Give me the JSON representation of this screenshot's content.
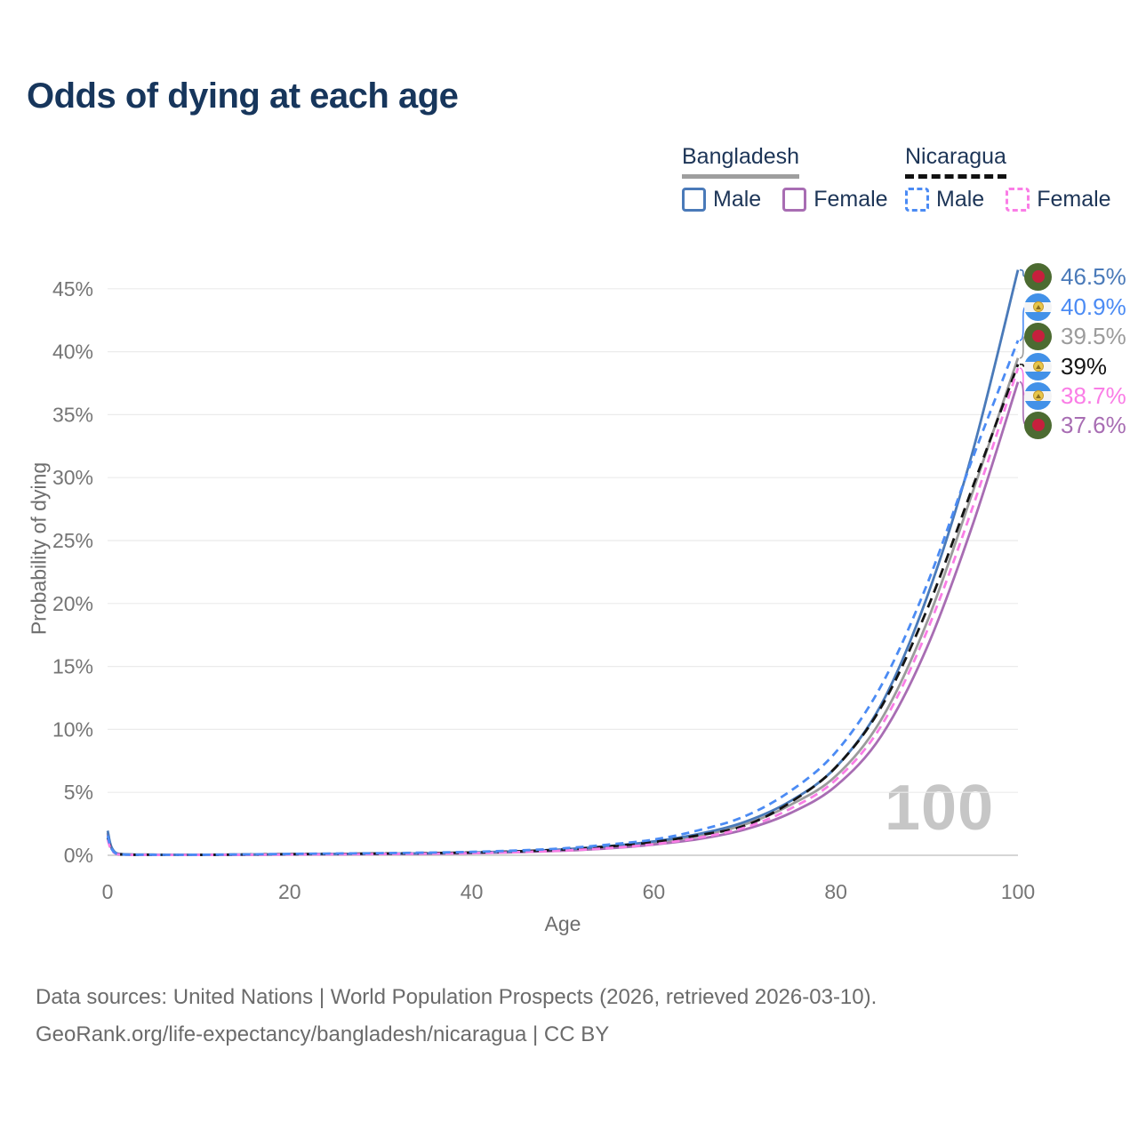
{
  "title": "Odds of dying at each age",
  "legend": {
    "groups": [
      {
        "id": "bd",
        "label": "Bangladesh",
        "items": [
          {
            "series": "bd_male",
            "label": "Male"
          },
          {
            "series": "bd_female",
            "label": "Female"
          }
        ]
      },
      {
        "id": "ni",
        "label": "Nicaragua",
        "items": [
          {
            "series": "ni_male",
            "label": "Male"
          },
          {
            "series": "ni_female",
            "label": "Female"
          }
        ]
      }
    ]
  },
  "footer": {
    "line1": "Data sources: United Nations | World Population Prospects (2026, retrieved 2026-03-10).",
    "line2": "GeoRank.org/life-expectancy/bangladesh/nicaragua | CC BY"
  },
  "colors": {
    "title": "#17365c",
    "legend_text": "#1d3557",
    "axis_text": "#757575",
    "axis_title": "#6e6e6e",
    "grid": "#ebebeb",
    "axis_line": "#c9c9c9",
    "watermark": "#c6c6c6",
    "footer": "#6b6b6b",
    "bd_flag_green": "#4c6b31",
    "bd_flag_red": "#c7203d",
    "ni_flag_blue": "#4291e8",
    "ni_flag_white": "#f4f4f4",
    "ni_flag_gold": "#e7c64a"
  },
  "chart_data": {
    "type": "line",
    "title": "Odds of dying at each age",
    "xlabel": "Age",
    "ylabel": "Probability of dying",
    "xlim": [
      0,
      100
    ],
    "ylim": [
      0,
      45
    ],
    "x_ticks": [
      0,
      20,
      40,
      60,
      80,
      100
    ],
    "y_ticks": [
      0,
      5,
      10,
      15,
      20,
      25,
      30,
      35,
      40,
      45
    ],
    "y_tick_suffix": "%",
    "grid": "horizontal-only",
    "legend_position": "top-right",
    "age_counter": "100",
    "ages": [
      0,
      1,
      5,
      10,
      15,
      20,
      25,
      30,
      35,
      40,
      45,
      50,
      55,
      60,
      65,
      70,
      75,
      80,
      85,
      90,
      95,
      100
    ],
    "series": [
      {
        "id": "bd_male",
        "name": "Bangladesh Male",
        "country": "Bangladesh",
        "sex": "Male",
        "color": "#4a7ab9",
        "dash": null,
        "flag": "bd",
        "end_label": "46.5%",
        "values": [
          1.95,
          0.15,
          0.05,
          0.04,
          0.06,
          0.09,
          0.11,
          0.13,
          0.16,
          0.22,
          0.32,
          0.47,
          0.72,
          1.1,
          1.7,
          2.65,
          4.3,
          7.0,
          12.0,
          20.5,
          32.0,
          46.5
        ]
      },
      {
        "id": "bd_female",
        "name": "Bangladesh Female",
        "country": "Bangladesh",
        "sex": "Female",
        "color": "#a86db3",
        "dash": null,
        "flag": "bd",
        "end_label": "37.6%",
        "values": [
          1.7,
          0.13,
          0.04,
          0.03,
          0.04,
          0.06,
          0.08,
          0.1,
          0.12,
          0.16,
          0.24,
          0.36,
          0.55,
          0.85,
          1.3,
          2.05,
          3.35,
          5.5,
          9.5,
          16.5,
          26.2,
          37.6
        ]
      },
      {
        "id": "bd_all",
        "name": "Bangladesh (both sexes)",
        "country": "Bangladesh",
        "sex": "All",
        "color": "#9b9b9b",
        "dash": null,
        "flag": "bd",
        "end_label": "39.5%",
        "values": [
          1.8,
          0.14,
          0.05,
          0.04,
          0.05,
          0.08,
          0.1,
          0.12,
          0.14,
          0.19,
          0.28,
          0.42,
          0.64,
          0.98,
          1.55,
          2.45,
          4.0,
          6.3,
          10.8,
          18.5,
          28.8,
          39.5
        ]
      },
      {
        "id": "ni_all",
        "name": "Nicaragua (both sexes)",
        "country": "Nicaragua",
        "sex": "All",
        "color": "#141414",
        "dash": "11 7",
        "flag": "ni",
        "end_label": "39%",
        "values": [
          1.4,
          0.11,
          0.04,
          0.03,
          0.06,
          0.09,
          0.11,
          0.14,
          0.17,
          0.22,
          0.31,
          0.46,
          0.7,
          1.05,
          1.6,
          2.35,
          4.2,
          7.0,
          11.8,
          19.5,
          29.2,
          39.0
        ]
      },
      {
        "id": "ni_female",
        "name": "Nicaragua Female",
        "country": "Nicaragua",
        "sex": "Female",
        "color": "#fa7de6",
        "dash": "9 6",
        "flag": "ni",
        "end_label": "38.7%",
        "values": [
          1.25,
          0.1,
          0.03,
          0.03,
          0.04,
          0.06,
          0.08,
          0.1,
          0.13,
          0.17,
          0.25,
          0.37,
          0.57,
          0.88,
          1.4,
          2.2,
          3.7,
          6.0,
          10.3,
          17.8,
          27.6,
          38.7
        ]
      },
      {
        "id": "ni_male",
        "name": "Nicaragua Male",
        "country": "Nicaragua",
        "sex": "Male",
        "color": "#4b8bf4",
        "dash": "9 6",
        "flag": "ni",
        "end_label": "40.9%",
        "values": [
          1.55,
          0.12,
          0.04,
          0.04,
          0.07,
          0.11,
          0.14,
          0.17,
          0.21,
          0.27,
          0.38,
          0.55,
          0.85,
          1.25,
          2.0,
          3.1,
          5.1,
          8.2,
          13.5,
          21.5,
          31.5,
          40.9
        ]
      }
    ],
    "end_label_order": [
      "bd_male",
      "ni_male",
      "bd_all",
      "ni_all",
      "ni_female",
      "bd_female"
    ]
  }
}
